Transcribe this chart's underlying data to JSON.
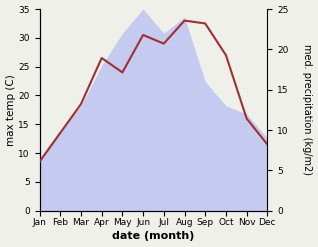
{
  "months": [
    "Jan",
    "Feb",
    "Mar",
    "Apr",
    "May",
    "Jun",
    "Jul",
    "Aug",
    "Sep",
    "Oct",
    "Nov",
    "Dec"
  ],
  "temperature": [
    8.5,
    13.5,
    18.5,
    26.5,
    24.0,
    30.5,
    29.0,
    33.0,
    32.5,
    27.0,
    16.0,
    11.5
  ],
  "precipitation": [
    6.5,
    10.0,
    13.0,
    18.0,
    22.0,
    25.0,
    22.0,
    24.0,
    16.0,
    13.0,
    12.0,
    9.0
  ],
  "temp_color": "#a03030",
  "precip_fill_color": "#c5caf0",
  "temp_ylim": [
    0,
    35
  ],
  "precip_ylim": [
    0,
    25
  ],
  "temp_yticks": [
    0,
    5,
    10,
    15,
    20,
    25,
    30,
    35
  ],
  "precip_yticks": [
    0,
    5,
    10,
    15,
    20,
    25
  ],
  "xlabel": "date (month)",
  "ylabel_left": "max temp (C)",
  "ylabel_right": "med. precipitation (kg/m2)",
  "background_color": "#f0f0eb",
  "plot_bg_color": "#ffffff",
  "label_fontsize": 7.5,
  "tick_fontsize": 6.5,
  "xlabel_fontsize": 8
}
